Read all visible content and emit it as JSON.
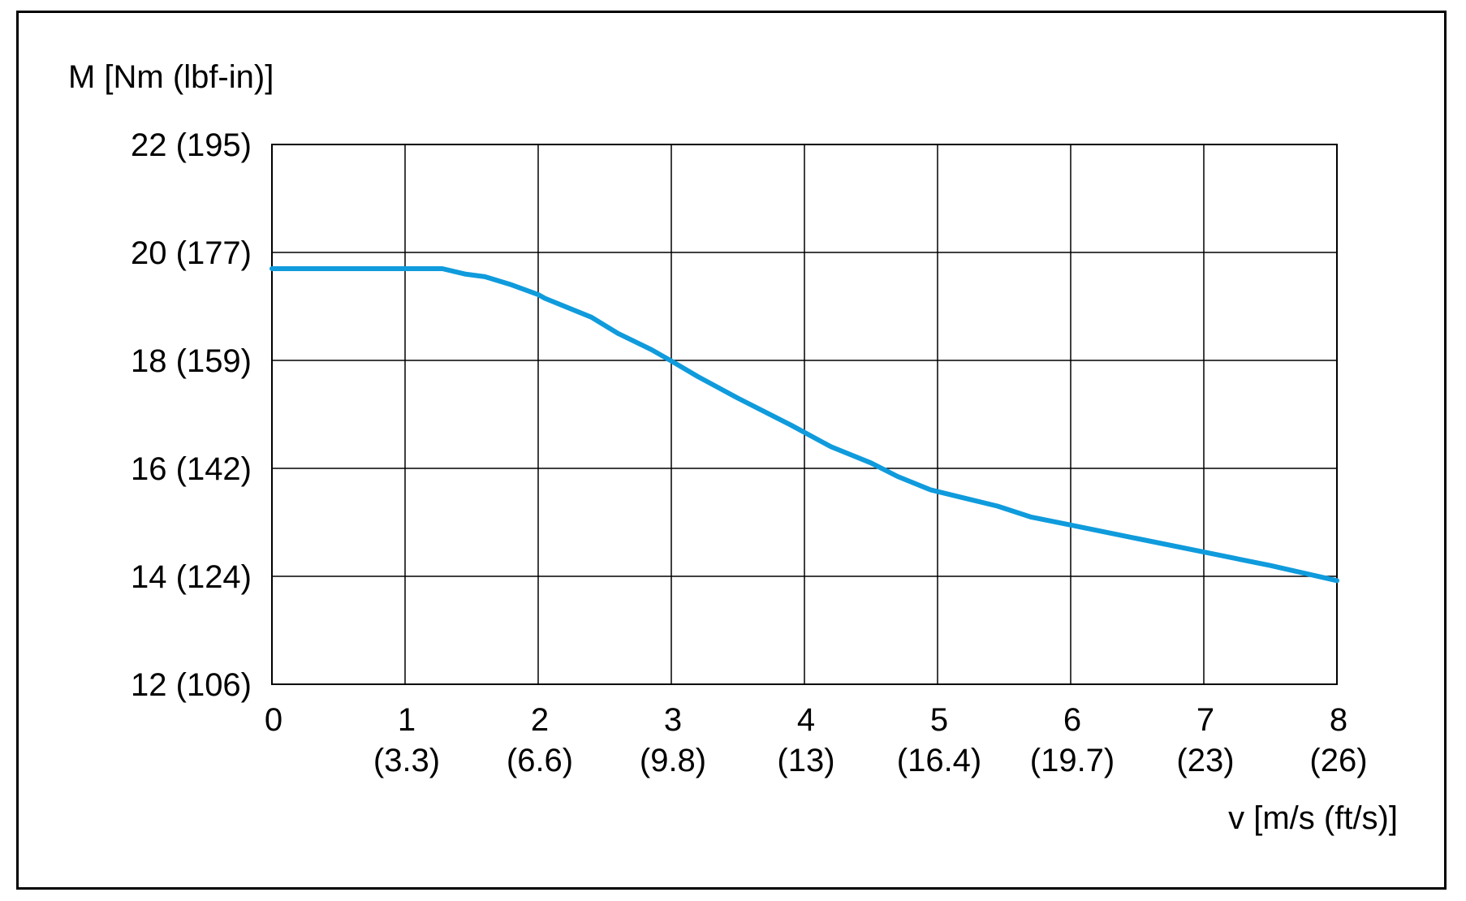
{
  "chart_data": {
    "type": "line",
    "ylabel": "M [Nm (lbf-in)]",
    "xlabel": "v [m/s (ft/s)]",
    "xlim": [
      0,
      8
    ],
    "ylim": [
      12,
      22
    ],
    "grid": true,
    "x_ticks": [
      {
        "value": 0,
        "label": "0",
        "sub": ""
      },
      {
        "value": 1,
        "label": "1",
        "sub": "(3.3)"
      },
      {
        "value": 2,
        "label": "2",
        "sub": "(6.6)"
      },
      {
        "value": 3,
        "label": "3",
        "sub": "(9.8)"
      },
      {
        "value": 4,
        "label": "4",
        "sub": "(13)"
      },
      {
        "value": 5,
        "label": "5",
        "sub": "(16.4)"
      },
      {
        "value": 6,
        "label": "6",
        "sub": "(19.7)"
      },
      {
        "value": 7,
        "label": "7",
        "sub": "(23)"
      },
      {
        "value": 8,
        "label": "8",
        "sub": "(26)"
      }
    ],
    "y_ticks": [
      {
        "value": 12,
        "label": "12 (106)"
      },
      {
        "value": 14,
        "label": "14 (124)"
      },
      {
        "value": 16,
        "label": "16 (142)"
      },
      {
        "value": 18,
        "label": "18 (159)"
      },
      {
        "value": 20,
        "label": "20 (177)"
      },
      {
        "value": 22,
        "label": "22 (195)"
      }
    ],
    "series": [
      {
        "color": "#0f9bdc",
        "x": [
          0,
          0.5,
          1.0,
          1.28,
          1.45,
          1.6,
          1.8,
          2.0,
          2.05,
          2.4,
          2.6,
          2.85,
          3.0,
          3.2,
          3.5,
          3.9,
          4.2,
          4.5,
          4.7,
          4.95,
          5.2,
          5.45,
          5.7,
          6.0,
          6.5,
          7.0,
          7.5,
          8.0
        ],
        "y": [
          19.7,
          19.7,
          19.7,
          19.7,
          19.6,
          19.55,
          19.4,
          19.22,
          19.15,
          18.8,
          18.5,
          18.2,
          17.99,
          17.7,
          17.3,
          16.8,
          16.4,
          16.1,
          15.85,
          15.6,
          15.45,
          15.3,
          15.1,
          14.95,
          14.7,
          14.45,
          14.2,
          13.92
        ]
      }
    ]
  }
}
